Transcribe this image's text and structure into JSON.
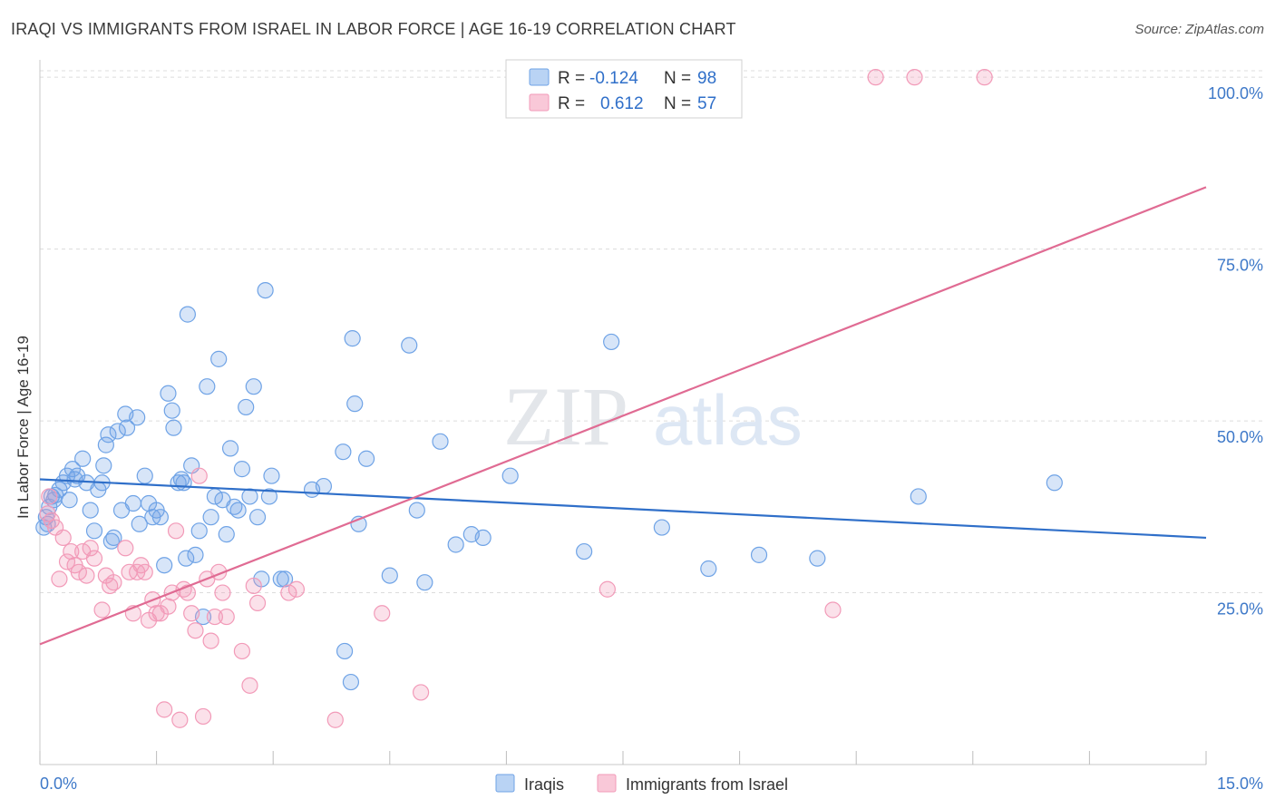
{
  "title": "IRAQI VS IMMIGRANTS FROM ISRAEL IN LABOR FORCE | AGE 16-19 CORRELATION CHART",
  "source": "Source: ZipAtlas.com",
  "watermark": {
    "zip": "ZIP",
    "atlas": "atlas"
  },
  "legend_box": {
    "rows": [
      {
        "r_label": "R =",
        "r_value": "-0.124",
        "n_label": "N =",
        "n_value": "98"
      },
      {
        "r_label": "R =",
        "r_value": "0.612",
        "n_label": "N =",
        "n_value": "57"
      }
    ]
  },
  "chart_data": {
    "type": "scatter",
    "title": "IRAQI VS IMMIGRANTS FROM ISRAEL IN LABOR FORCE | AGE 16-19 CORRELATION CHART",
    "xlabel": "",
    "ylabel": "In Labor Force | Age 16-19",
    "xlim": [
      0,
      15
    ],
    "ylim": [
      0,
      102
    ],
    "x_tick_labels": [
      "0.0%",
      "15.0%"
    ],
    "y_tick_values": [
      25,
      50,
      75,
      100
    ],
    "y_tick_labels": [
      "25.0%",
      "50.0%",
      "75.0%",
      "100.0%"
    ],
    "grid": true,
    "legend_position": "bottom-center",
    "series": [
      {
        "name": "Iraqis",
        "color": "#6fa3e6",
        "line_color": "#2f6fc9",
        "r": -0.124,
        "n": 98,
        "trend": {
          "x": [
            0,
            15
          ],
          "y": [
            41.5,
            33.0
          ]
        },
        "points": [
          [
            0.05,
            34.5
          ],
          [
            0.08,
            36
          ],
          [
            0.1,
            35
          ],
          [
            0.12,
            37.5
          ],
          [
            0.15,
            39
          ],
          [
            0.18,
            38.5
          ],
          [
            0.2,
            39.2
          ],
          [
            0.25,
            40
          ],
          [
            0.3,
            41
          ],
          [
            0.35,
            42
          ],
          [
            0.38,
            38.5
          ],
          [
            0.42,
            43
          ],
          [
            0.45,
            41.5
          ],
          [
            0.48,
            42
          ],
          [
            0.55,
            44.5
          ],
          [
            0.6,
            41
          ],
          [
            0.65,
            37
          ],
          [
            0.7,
            34
          ],
          [
            0.75,
            40
          ],
          [
            0.8,
            41
          ],
          [
            0.82,
            43.5
          ],
          [
            0.85,
            46.5
          ],
          [
            0.88,
            48
          ],
          [
            0.92,
            32.5
          ],
          [
            0.95,
            33
          ],
          [
            1.0,
            48.5
          ],
          [
            1.05,
            37
          ],
          [
            1.1,
            51
          ],
          [
            1.12,
            49
          ],
          [
            1.2,
            38
          ],
          [
            1.25,
            50.5
          ],
          [
            1.28,
            35
          ],
          [
            1.35,
            42
          ],
          [
            1.4,
            38
          ],
          [
            1.45,
            36
          ],
          [
            1.5,
            37
          ],
          [
            1.55,
            36
          ],
          [
            1.6,
            29
          ],
          [
            1.65,
            54
          ],
          [
            1.7,
            51.5
          ],
          [
            1.72,
            49
          ],
          [
            1.78,
            41
          ],
          [
            1.82,
            41.5
          ],
          [
            1.85,
            41
          ],
          [
            1.88,
            30
          ],
          [
            1.9,
            65.5
          ],
          [
            1.95,
            43.5
          ],
          [
            2.0,
            30.5
          ],
          [
            2.05,
            34
          ],
          [
            2.1,
            21.5
          ],
          [
            2.15,
            55
          ],
          [
            2.2,
            36
          ],
          [
            2.25,
            39
          ],
          [
            2.3,
            59
          ],
          [
            2.35,
            38.5
          ],
          [
            2.4,
            33.5
          ],
          [
            2.45,
            46
          ],
          [
            2.5,
            37.5
          ],
          [
            2.55,
            37
          ],
          [
            2.6,
            43
          ],
          [
            2.65,
            52
          ],
          [
            2.7,
            39
          ],
          [
            2.75,
            55
          ],
          [
            2.8,
            36
          ],
          [
            2.85,
            27
          ],
          [
            2.9,
            69
          ],
          [
            2.95,
            39
          ],
          [
            2.98,
            42
          ],
          [
            3.1,
            27
          ],
          [
            3.15,
            27
          ],
          [
            3.5,
            40
          ],
          [
            3.65,
            40.5
          ],
          [
            3.9,
            45.5
          ],
          [
            3.92,
            16.5
          ],
          [
            4.0,
            12
          ],
          [
            4.02,
            62
          ],
          [
            4.05,
            52.5
          ],
          [
            4.1,
            35
          ],
          [
            4.2,
            44.5
          ],
          [
            4.5,
            27.5
          ],
          [
            4.75,
            61
          ],
          [
            4.85,
            37
          ],
          [
            4.95,
            26.5
          ],
          [
            5.15,
            47
          ],
          [
            5.35,
            32
          ],
          [
            5.55,
            33.5
          ],
          [
            5.7,
            33
          ],
          [
            6.05,
            42
          ],
          [
            7.0,
            31
          ],
          [
            7.35,
            61.5
          ],
          [
            8.0,
            34.5
          ],
          [
            8.6,
            28.5
          ],
          [
            9.25,
            30.5
          ],
          [
            10.0,
            30
          ],
          [
            11.3,
            39
          ],
          [
            13.05,
            41
          ]
        ]
      },
      {
        "name": "Immigrants from Israel",
        "color": "#f29ab8",
        "line_color": "#e06b93",
        "r": 0.612,
        "n": 57,
        "trend": {
          "x": [
            0,
            15
          ],
          "y": [
            17.5,
            84
          ]
        },
        "points": [
          [
            0.1,
            36.5
          ],
          [
            0.12,
            39
          ],
          [
            0.15,
            35.5
          ],
          [
            0.2,
            34.5
          ],
          [
            0.25,
            27
          ],
          [
            0.3,
            33
          ],
          [
            0.35,
            29.5
          ],
          [
            0.4,
            31
          ],
          [
            0.45,
            29
          ],
          [
            0.5,
            28
          ],
          [
            0.55,
            31
          ],
          [
            0.6,
            27.5
          ],
          [
            0.65,
            31.5
          ],
          [
            0.7,
            30
          ],
          [
            0.8,
            22.5
          ],
          [
            0.85,
            27.5
          ],
          [
            0.9,
            26
          ],
          [
            0.95,
            26.5
          ],
          [
            1.1,
            31.5
          ],
          [
            1.15,
            28
          ],
          [
            1.2,
            22
          ],
          [
            1.25,
            28
          ],
          [
            1.3,
            29
          ],
          [
            1.35,
            28
          ],
          [
            1.4,
            21
          ],
          [
            1.45,
            24
          ],
          [
            1.5,
            22
          ],
          [
            1.55,
            22
          ],
          [
            1.6,
            8
          ],
          [
            1.65,
            23
          ],
          [
            1.7,
            25
          ],
          [
            1.75,
            34
          ],
          [
            1.8,
            6.5
          ],
          [
            1.85,
            25.5
          ],
          [
            1.9,
            25
          ],
          [
            1.95,
            22
          ],
          [
            2.0,
            19.5
          ],
          [
            2.05,
            42
          ],
          [
            2.1,
            7
          ],
          [
            2.15,
            27
          ],
          [
            2.2,
            18
          ],
          [
            2.25,
            21.5
          ],
          [
            2.3,
            28
          ],
          [
            2.35,
            25
          ],
          [
            2.4,
            21.5
          ],
          [
            2.6,
            16.5
          ],
          [
            2.7,
            11.5
          ],
          [
            2.75,
            26
          ],
          [
            2.8,
            23.5
          ],
          [
            3.2,
            25
          ],
          [
            3.3,
            25.5
          ],
          [
            3.8,
            6.5
          ],
          [
            4.4,
            22
          ],
          [
            4.9,
            10.5
          ],
          [
            7.3,
            25.5
          ],
          [
            10.2,
            22.5
          ],
          [
            10.75,
            100
          ],
          [
            11.25,
            100
          ],
          [
            12.15,
            100
          ]
        ]
      }
    ]
  }
}
